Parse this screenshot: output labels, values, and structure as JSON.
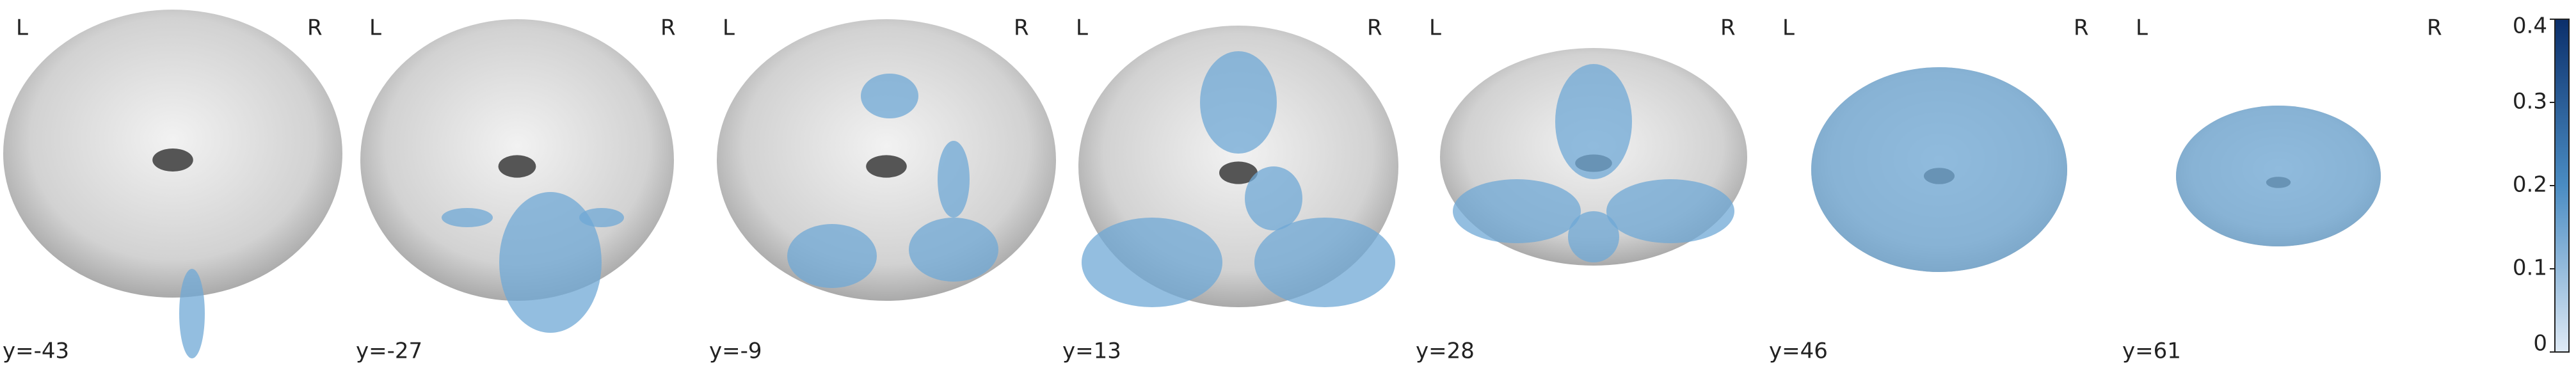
{
  "panels": [
    {
      "left": "L",
      "right": "R",
      "coordinate": "y=-43"
    },
    {
      "left": "L",
      "right": "R",
      "coordinate": "y=-27"
    },
    {
      "left": "L",
      "right": "R",
      "coordinate": "y=-9"
    },
    {
      "left": "L",
      "right": "R",
      "coordinate": "y=13"
    },
    {
      "left": "L",
      "right": "R",
      "coordinate": "y=28"
    },
    {
      "left": "L",
      "right": "R",
      "coordinate": "y=46"
    },
    {
      "left": "L",
      "right": "R",
      "coordinate": "y=61"
    }
  ],
  "colorbar": {
    "range": [
      0,
      0.4
    ],
    "ticks": [
      0,
      0.1,
      0.2,
      0.3,
      0.4
    ]
  }
}
